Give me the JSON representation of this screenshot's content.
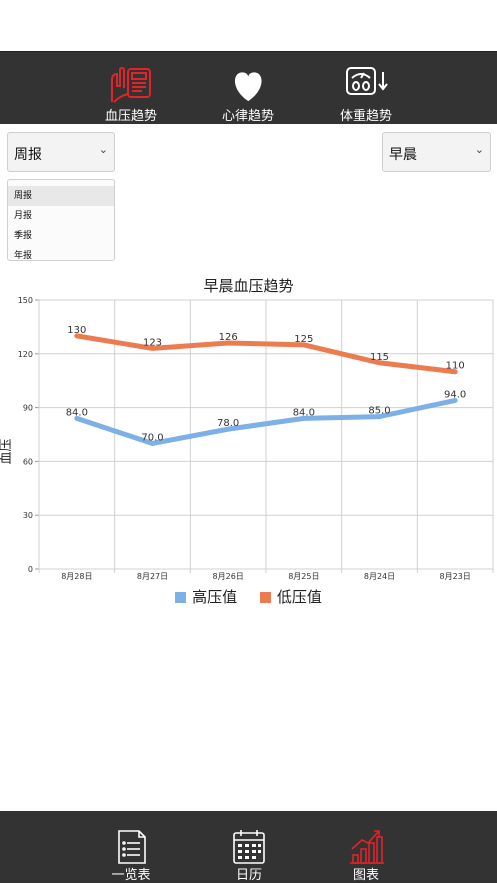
{
  "top_tabs": [
    {
      "label": "血压趋势",
      "icon": "blood-pressure-icon",
      "active": true
    },
    {
      "label": "心律趋势",
      "icon": "heart-icon",
      "active": false
    },
    {
      "label": "体重趋势",
      "icon": "scale-icon",
      "active": false
    }
  ],
  "period_select": {
    "value": "周报"
  },
  "period_list": [
    "周报",
    "月报",
    "季报",
    "年报"
  ],
  "time_select": {
    "value": "早晨"
  },
  "colors": {
    "accent": "#e0242a",
    "high": "#7cb0e6",
    "low": "#ec7c4f",
    "bar": "#333333"
  },
  "chart_data": {
    "type": "line",
    "title": "早晨血压趋势",
    "ylabel": "血压",
    "xlabel": "",
    "categories": [
      "8月28日",
      "8月27日",
      "8月26日",
      "8月25日",
      "8月24日",
      "8月23日"
    ],
    "ylim": [
      0,
      150
    ],
    "yticks": [
      0,
      30,
      60,
      90,
      120,
      150
    ],
    "series": [
      {
        "name": "高压值",
        "values": [
          84.0,
          70.0,
          78.0,
          84.0,
          85.0,
          94.0
        ],
        "labels": [
          "84.0",
          "70.0",
          "78.0",
          "84.0",
          "85.0",
          "94.0"
        ]
      },
      {
        "name": "低压值",
        "values": [
          130,
          123,
          126,
          125,
          115,
          110
        ],
        "labels": [
          "130",
          "123",
          "126",
          "125",
          "115",
          "110"
        ]
      }
    ],
    "grid": true,
    "legend": "bottom"
  },
  "bottom_tabs": [
    {
      "label": "一览表",
      "icon": "list-document-icon",
      "active": false
    },
    {
      "label": "日历",
      "icon": "calendar-icon",
      "active": false
    },
    {
      "label": "图表",
      "icon": "bar-chart-icon",
      "active": true
    }
  ]
}
